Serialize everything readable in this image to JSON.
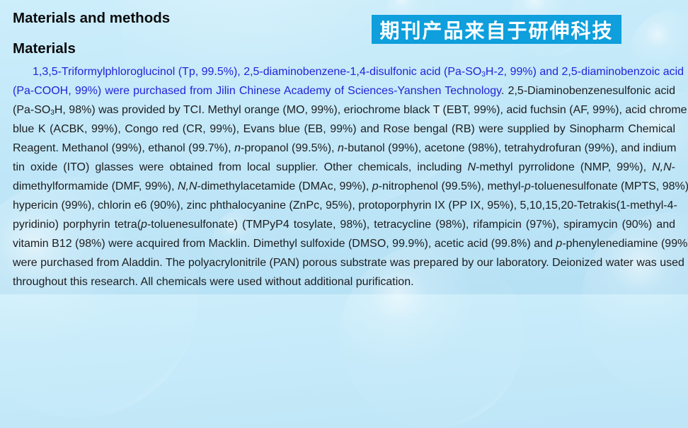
{
  "document": {
    "heading": "Materials and methods",
    "subheading": "Materials"
  },
  "banner": {
    "text": "期刊产品来自于研伸科技",
    "bg": "#0e9fdc",
    "fg": "#ffffff"
  },
  "colors": {
    "page_bg_top": "#cdeefb",
    "page_bg_bottom": "#b5e0f4",
    "body_text": "#1d1d1f",
    "highlight_text": "#2323d9"
  },
  "paragraph": {
    "lines": [
      {
        "indent": true,
        "segments": [
          {
            "t": "1,3,5-Triformylphloroglucinol (Tp, 99.5%), 2,5-diaminobenzene-1,4-disulfonic acid (Pa-SO",
            "c": "blue"
          },
          {
            "t": "3",
            "c": "blue",
            "sub": true
          },
          {
            "t": "H-2, 99%) and 2,5-diaminobenzoic acid",
            "c": "blue"
          }
        ]
      },
      {
        "segments": [
          {
            "t": "(Pa-COOH, 99%) were purchased from Jilin Chinese Academy of Sciences-Yanshen Technology",
            "c": "blue"
          },
          {
            "t": ". 2,5-Diaminobenzenesulfonic acid"
          }
        ]
      },
      {
        "segments": [
          {
            "t": "(Pa-SO"
          },
          {
            "t": "3",
            "sub": true
          },
          {
            "t": "H, 98%) was provided by TCI. Methyl orange (MO, 99%), eriochrome black T (EBT, 99%), acid fuchsin (AF, 99%), acid chrome"
          }
        ]
      },
      {
        "segments": [
          {
            "t": "blue K (ACBK, 99%), Congo red (CR, 99%), Evans blue (EB, 99%) and Rose bengal (RB) were supplied by Sinopharm Chemical"
          }
        ]
      },
      {
        "segments": [
          {
            "t": "Reagent. Methanol (99%), ethanol (99.7%), "
          },
          {
            "t": "n",
            "i": true
          },
          {
            "t": "-propanol (99.5%), "
          },
          {
            "t": "n",
            "i": true
          },
          {
            "t": "-butanol (99%), acetone (98%), tetrahydrofuran (99%), and indium"
          }
        ]
      },
      {
        "segments": [
          {
            "t": "tin oxide (ITO) glasses were obtained from local supplier. Other chemicals, including "
          },
          {
            "t": "N",
            "i": true
          },
          {
            "t": "-methyl pyrrolidone (NMP, 99%), "
          },
          {
            "t": "N,N",
            "i": true
          },
          {
            "t": "-"
          }
        ]
      },
      {
        "segments": [
          {
            "t": "dimethylformamide (DMF, 99%), "
          },
          {
            "t": "N,N",
            "i": true
          },
          {
            "t": "-dimethylacetamide (DMAc, 99%), "
          },
          {
            "t": "p",
            "i": true
          },
          {
            "t": "-nitrophenol (99.5%), methyl-"
          },
          {
            "t": "p",
            "i": true
          },
          {
            "t": "-toluenesulfonate (MPTS, 98%),"
          }
        ]
      },
      {
        "segments": [
          {
            "t": "hypericin (99%), chlorin e6 (90%), zinc phthalocyanine (ZnPc, 95%), protoporphyrin IX (PP IX, 95%), 5,10,15,20-Tetrakis(1-methyl-4-"
          }
        ]
      },
      {
        "segments": [
          {
            "t": "pyridinio) porphyrin tetra("
          },
          {
            "t": "p",
            "i": true
          },
          {
            "t": "-toluenesulfonate) (TMPyP4 tosylate, 98%), tetracycline (98%), rifampicin (97%), spiramycin (90%) and"
          }
        ]
      },
      {
        "segments": [
          {
            "t": "vitamin B12 (98%) were acquired from Macklin. Dimethyl sulfoxide (DMSO, 99.9%), acetic acid (99.8%) and "
          },
          {
            "t": "p",
            "i": true
          },
          {
            "t": "-phenylenediamine (99%)"
          }
        ]
      },
      {
        "segments": [
          {
            "t": "were purchased from Aladdin. The polyacrylonitrile (PAN) porous substrate was prepared by our laboratory. Deionized water was used"
          }
        ]
      },
      {
        "last": true,
        "segments": [
          {
            "t": "throughout this research. All chemicals were used without additional purification."
          }
        ]
      }
    ]
  }
}
